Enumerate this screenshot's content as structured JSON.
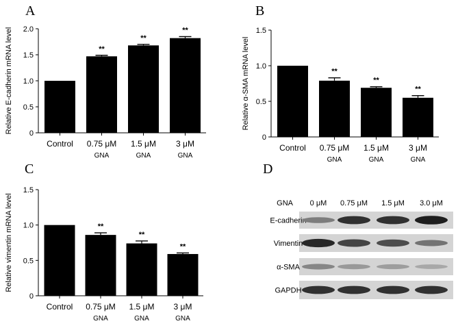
{
  "chart_data": [
    {
      "panel": "A",
      "type": "bar",
      "categories": [
        {
          "line1": "Control",
          "line2": ""
        },
        {
          "line1": "0.75 μM",
          "line2": "GNA"
        },
        {
          "line1": "1.5 μM",
          "line2": "GNA"
        },
        {
          "line1": "3 μM",
          "line2": "GNA"
        }
      ],
      "values": [
        1.0,
        1.47,
        1.68,
        1.82
      ],
      "errors": [
        0,
        0.02,
        0.02,
        0.03
      ],
      "annotations": [
        "",
        "**",
        "**",
        "**"
      ],
      "ylabel": "Relative E-cadherin mRNA level",
      "ylim": [
        0,
        2.0
      ],
      "yticks": [
        "0",
        "0.5",
        "1.0",
        "1.5",
        "2.0"
      ],
      "ytick_values": [
        0,
        0.5,
        1.0,
        1.5,
        2.0
      ],
      "bar_color": "#000000"
    },
    {
      "panel": "B",
      "type": "bar",
      "categories": [
        {
          "line1": "Control",
          "line2": ""
        },
        {
          "line1": "0.75 μM",
          "line2": "GNA"
        },
        {
          "line1": "1.5 μM",
          "line2": "GNA"
        },
        {
          "line1": "3 μM",
          "line2": "GNA"
        }
      ],
      "values": [
        1.0,
        0.79,
        0.69,
        0.55
      ],
      "errors": [
        0,
        0.04,
        0.015,
        0.03
      ],
      "annotations": [
        "",
        "**",
        "**",
        "**"
      ],
      "ylabel": "Relative α-SMA mRNA level",
      "ylim": [
        0,
        1.5
      ],
      "yticks": [
        "0",
        "0.5",
        "1.0",
        "1.5"
      ],
      "ytick_values": [
        0,
        0.5,
        1.0,
        1.5
      ],
      "bar_color": "#000000"
    },
    {
      "panel": "C",
      "type": "bar",
      "categories": [
        {
          "line1": "Control",
          "line2": ""
        },
        {
          "line1": "0.75 μM",
          "line2": "GNA"
        },
        {
          "line1": "1.5 μM",
          "line2": "GNA"
        },
        {
          "line1": "3 μM",
          "line2": "GNA"
        }
      ],
      "values": [
        1.0,
        0.86,
        0.74,
        0.59
      ],
      "errors": [
        0,
        0.03,
        0.035,
        0.015
      ],
      "annotations": [
        "",
        "**",
        "**",
        "**"
      ],
      "ylabel": "Relative vimentin mRNA level",
      "ylim": [
        0,
        1.5
      ],
      "yticks": [
        "0",
        "0.5",
        "1.0",
        "1.5"
      ],
      "ytick_values": [
        0,
        0.5,
        1.0,
        1.5
      ],
      "bar_color": "#000000"
    }
  ],
  "blot": {
    "panel": "D",
    "header_label": "GNA",
    "lanes": [
      "0 μM",
      "0.75 μM",
      "1.5 μM",
      "3.0 μM"
    ],
    "rows": [
      {
        "label": "E-cadherin",
        "intensities": [
          0.45,
          0.85,
          0.85,
          0.95
        ]
      },
      {
        "label": "Vimentin",
        "intensities": [
          0.9,
          0.75,
          0.7,
          0.5
        ]
      },
      {
        "label": "α-SMA",
        "intensities": [
          0.4,
          0.3,
          0.28,
          0.22
        ]
      },
      {
        "label": "GAPDH",
        "intensities": [
          0.85,
          0.85,
          0.85,
          0.85
        ]
      }
    ]
  }
}
